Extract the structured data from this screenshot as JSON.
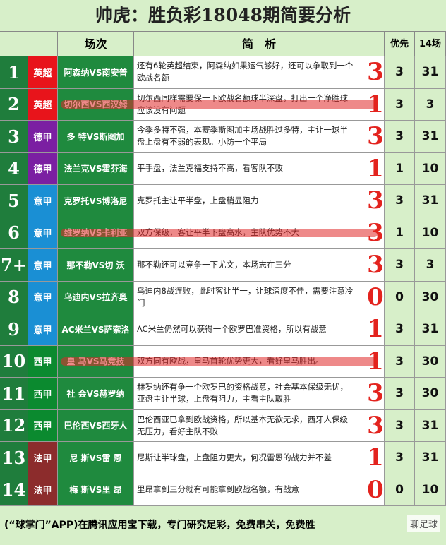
{
  "title": "帅虎：胜负彩18048期简要分析",
  "header": {
    "match": "场次",
    "analysis": "简　析",
    "priority": "优先",
    "count": "14场"
  },
  "table": {
    "rows": [
      {
        "no": "1",
        "league": "英超",
        "league_color": "#e8141b",
        "match": "阿森纳VS南安普",
        "analysis": "还有6轮英超结束，阿森纳如果运气够好，还可以争取到一个欧战名额",
        "pick": 3,
        "priority": 3,
        "count": 31
      },
      {
        "no": "2",
        "league": "英超",
        "league_color": "#e8141b",
        "match": "切尔西VS西汉姆",
        "analysis": "切尔西同样需要保一下欧战名额球半深盘，打出一个净胜球应该没有问题",
        "pick": 1,
        "priority": 3,
        "count": 3
      },
      {
        "no": "3",
        "league": "德甲",
        "league_color": "#7b1fa2",
        "match": "多 特VS斯图加",
        "analysis": "今季多特不强，本赛季斯图加主场战胜过多特，主让一球半盘上盘有不弱的表现。小防一个平局",
        "pick": 3,
        "priority": 3,
        "count": 31
      },
      {
        "no": "4",
        "league": "德甲",
        "league_color": "#7b1fa2",
        "match": "法兰克VS霍芬海",
        "analysis": "平手盘，法兰克福支持不高，看客队不败",
        "pick": 1,
        "priority": 1,
        "count": 10
      },
      {
        "no": "5",
        "league": "意甲",
        "league_color": "#1a8fd4",
        "match": "克罗托VS博洛尼",
        "analysis": "克罗托主让平半盘，上盘稍显阻力",
        "pick": 3,
        "priority": 3,
        "count": 31
      },
      {
        "no": "6",
        "league": "意甲",
        "league_color": "#1a8fd4",
        "match": "维罗纳VS卡利亚",
        "analysis": "双方保级，客让平半下盘高水，主队优势不大",
        "pick": 3,
        "priority": 1,
        "count": 10
      },
      {
        "no": "7+",
        "league": "意甲",
        "league_color": "#1a8fd4",
        "match": "那不勒VS切 沃",
        "analysis": "那不勒还可以竞争一下尤文，本场志在三分",
        "pick": 3,
        "priority": 3,
        "count": 3
      },
      {
        "no": "8",
        "league": "意甲",
        "league_color": "#1a8fd4",
        "match": "乌迪内VS拉齐奥",
        "analysis": "乌迪内8战连败，此时客让半一，让球深度不佳，需要注意冷门",
        "pick": 0,
        "priority": 0,
        "count": 30
      },
      {
        "no": "9",
        "league": "意甲",
        "league_color": "#1a8fd4",
        "match": "AC米兰VS萨索洛",
        "analysis": "AC米兰仍然可以获得一个欧罗巴准资格，所以有战意",
        "pick": 1,
        "priority": 3,
        "count": 31
      },
      {
        "no": "10",
        "league": "西甲",
        "league_color": "#0b8a2f",
        "match": "皇 马VS马竞技",
        "analysis": "双方同有欧战，皇马首轮优势更大，看好皇马胜出。",
        "pick": 1,
        "priority": 3,
        "count": 30
      },
      {
        "no": "11",
        "league": "西甲",
        "league_color": "#0b8a2f",
        "match": "社 会VS赫罗纳",
        "analysis": "赫罗纳还有争一个欧罗巴的资格战意，社会基本保级无忧，亚盘主让半球，上盘有阻力，主看主队取胜",
        "pick": 3,
        "priority": 3,
        "count": 30
      },
      {
        "no": "12",
        "league": "西甲",
        "league_color": "#0b8a2f",
        "match": "巴伦西VS西牙人",
        "analysis": "巴伦西亚已拿到欧战资格，所以基本无欲无求，西牙人保级无压力，看好主队不败",
        "pick": 3,
        "priority": 3,
        "count": 31
      },
      {
        "no": "13",
        "league": "法甲",
        "league_color": "#8c2c2c",
        "match": "尼 斯VS雷 恩",
        "analysis": "尼斯让半球盘，上盘阻力更大，何况雷恩的战力并不差",
        "pick": 1,
        "priority": 3,
        "count": 31
      },
      {
        "no": "14",
        "league": "法甲",
        "league_color": "#8c2c2c",
        "match": "梅 斯VS里 昂",
        "analysis": "里昂拿到三分就有可能拿到欧战名额，有战意",
        "pick": 0,
        "priority": 0,
        "count": 10
      }
    ]
  },
  "footer": {
    "text": "(“球掌门”APP)在腾讯应用宝下载，专门研究足彩，免费串关，免费胜",
    "watermark": "聊足球"
  }
}
